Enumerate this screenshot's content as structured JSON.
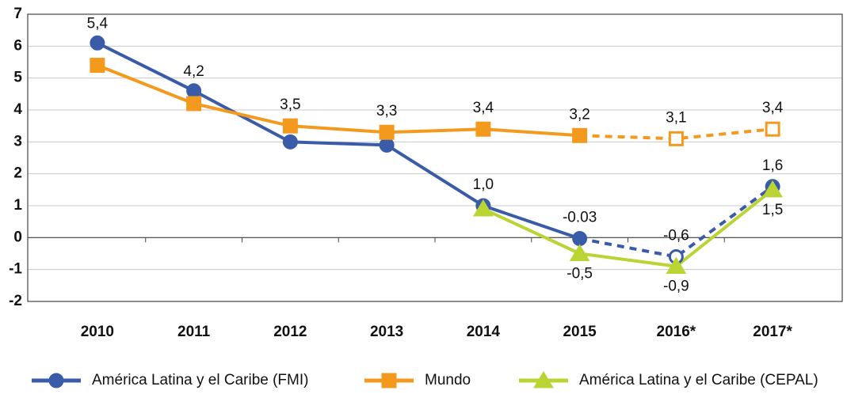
{
  "chart_data": {
    "type": "line",
    "categories": [
      "2010",
      "2011",
      "2012",
      "2013",
      "2014",
      "2015",
      "2016*",
      "2017*"
    ],
    "series": [
      {
        "name": "América Latina y el Caribe (FMI)",
        "color": "#3a5ca8",
        "marker": "circle",
        "values": [
          6.1,
          4.6,
          3.0,
          2.9,
          1.0,
          -0.03,
          -0.6,
          1.6
        ],
        "value_labels": [
          null,
          null,
          null,
          null,
          "1,0",
          "-0.03",
          "-0,6",
          "1,6"
        ]
      },
      {
        "name": "Mundo",
        "color": "#f39a1e",
        "marker": "square",
        "values": [
          5.4,
          4.2,
          3.5,
          3.3,
          3.4,
          3.2,
          3.1,
          3.4
        ],
        "value_labels": [
          "5,4",
          "4,2",
          "3,5",
          "3,3",
          "3,4",
          "3,2",
          "3,1",
          "3,4"
        ]
      },
      {
        "name": "América Latina y el Caribe (CEPAL)",
        "color": "#b9d433",
        "marker": "triangle",
        "values": [
          null,
          null,
          null,
          null,
          0.9,
          -0.5,
          -0.9,
          1.5
        ],
        "value_labels": [
          null,
          null,
          null,
          null,
          null,
          "-0,5",
          "-0,9",
          "1,5"
        ]
      }
    ],
    "ylim": [
      -2,
      7
    ],
    "yticks": [
      -2,
      -1,
      0,
      1,
      2,
      3,
      4,
      5,
      6,
      7
    ],
    "grid": true,
    "legend": "bottom"
  }
}
